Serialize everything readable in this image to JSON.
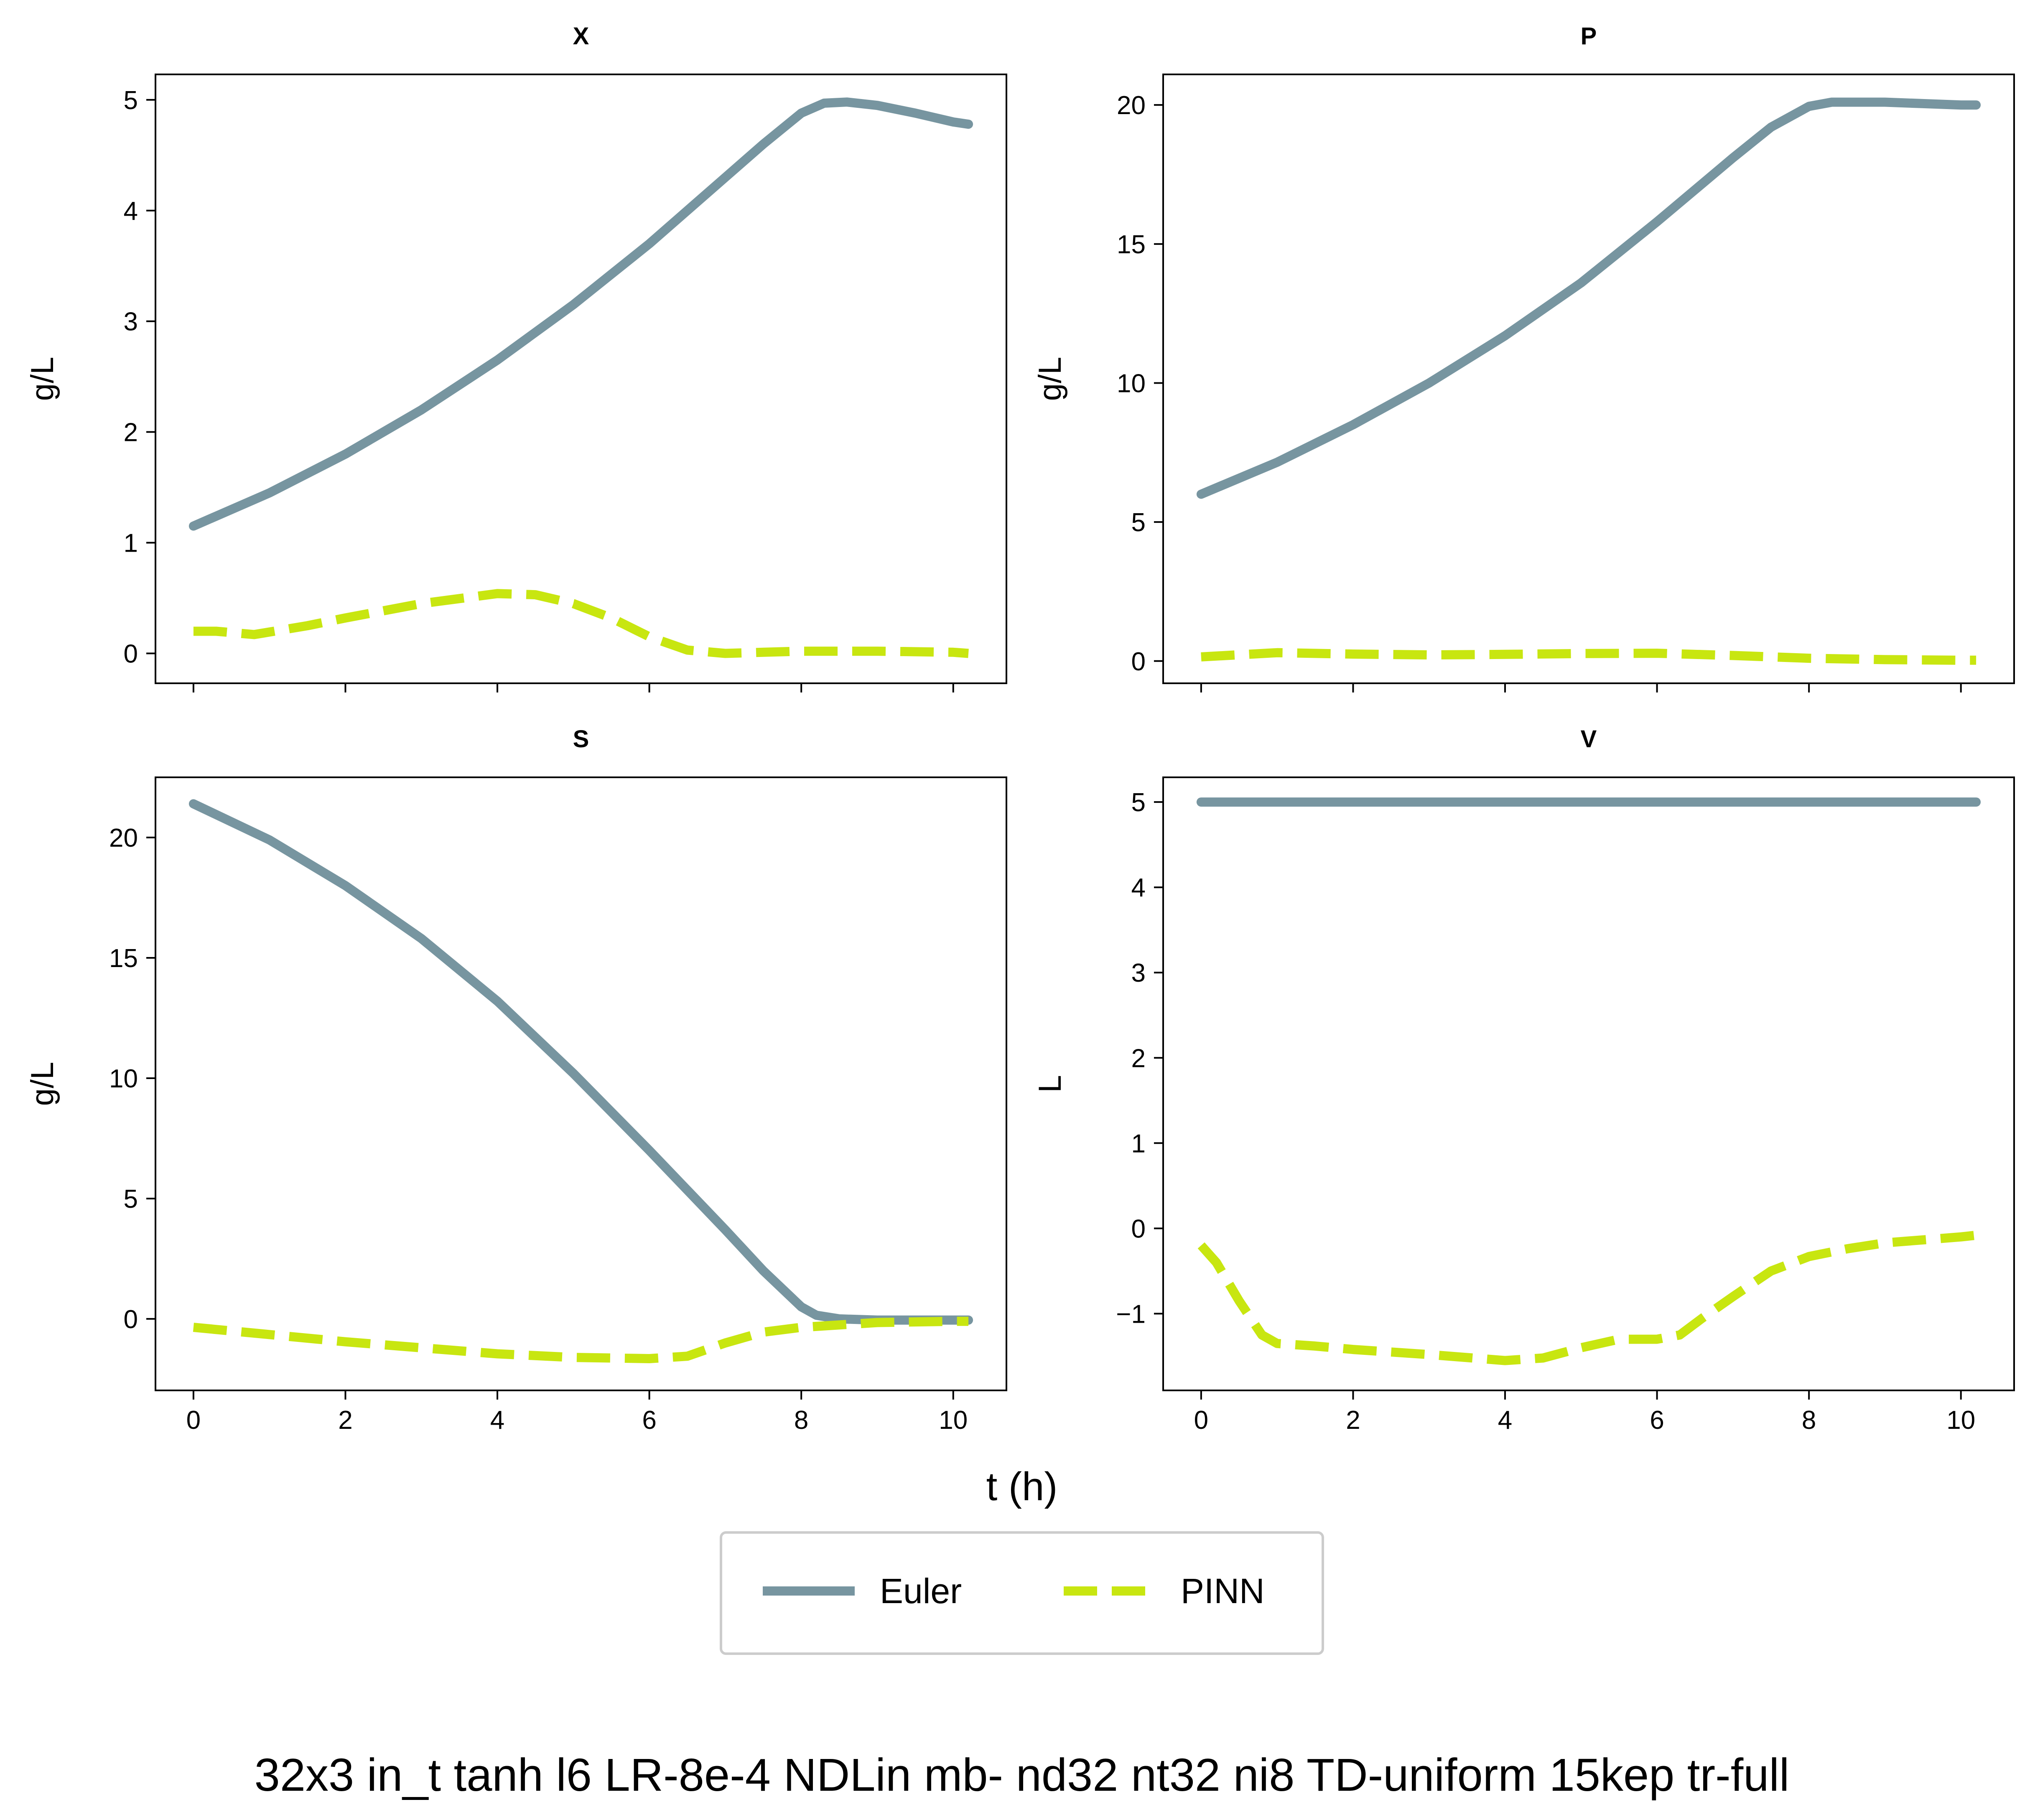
{
  "colors": {
    "euler": "#7795a0",
    "pinn": "#c8e610"
  },
  "legend": {
    "items": [
      {
        "label": "Euler",
        "style": "solid"
      },
      {
        "label": "PINN",
        "style": "dashed"
      }
    ]
  },
  "xlabel": "t (h)",
  "suptitle": "32x3 in_t tanh l6 LR-8e-4 NDLin mb- nd32 nt32 ni8 TD-uniform 15kep tr-full",
  "chart_data": [
    {
      "type": "line",
      "title": "X",
      "ylabel": "g/L",
      "xlim": [
        -0.5,
        10.7
      ],
      "ylim": [
        -0.27,
        5.23
      ],
      "xticks": [
        0,
        2,
        4,
        6,
        8,
        10
      ],
      "yticks": [
        0,
        1,
        2,
        3,
        4,
        5
      ],
      "xtick_labels": [],
      "ytick_labels": [
        "0",
        "1",
        "2",
        "3",
        "4",
        "5"
      ],
      "series": [
        {
          "name": "Euler",
          "x": [
            0,
            1,
            2,
            3,
            4,
            5,
            6,
            7,
            7.5,
            8,
            8.3,
            8.6,
            9,
            9.5,
            10,
            10.2
          ],
          "y": [
            1.15,
            1.45,
            1.8,
            2.2,
            2.65,
            3.15,
            3.7,
            4.3,
            4.6,
            4.88,
            4.97,
            4.98,
            4.95,
            4.88,
            4.8,
            4.78
          ]
        },
        {
          "name": "PINN",
          "x": [
            0,
            0.3,
            0.8,
            1.5,
            2,
            3,
            4,
            4.5,
            5,
            5.5,
            6,
            6.5,
            7,
            7.5,
            8,
            9,
            10,
            10.2
          ],
          "y": [
            0.2,
            0.2,
            0.17,
            0.25,
            0.32,
            0.45,
            0.54,
            0.53,
            0.45,
            0.32,
            0.15,
            0.03,
            0.0,
            0.01,
            0.02,
            0.02,
            0.01,
            0.0
          ]
        }
      ]
    },
    {
      "type": "line",
      "title": "P",
      "ylabel": "g/L",
      "xlim": [
        -0.5,
        10.7
      ],
      "ylim": [
        -0.8,
        21.1
      ],
      "xticks": [
        0,
        2,
        4,
        6,
        8,
        10
      ],
      "yticks": [
        0,
        5,
        10,
        15,
        20
      ],
      "xtick_labels": [],
      "ytick_labels": [
        "0",
        "5",
        "10",
        "15",
        "20"
      ],
      "series": [
        {
          "name": "Euler",
          "x": [
            0,
            1,
            2,
            3,
            4,
            5,
            6,
            7,
            7.5,
            8,
            8.3,
            8.7,
            9,
            9.5,
            10,
            10.2
          ],
          "y": [
            6.0,
            7.15,
            8.5,
            10.0,
            11.7,
            13.6,
            15.8,
            18.1,
            19.2,
            19.95,
            20.1,
            20.1,
            20.1,
            20.05,
            20.0,
            20.0
          ]
        },
        {
          "name": "PINN",
          "x": [
            0,
            1,
            2,
            3,
            4,
            5,
            6,
            7,
            8,
            9,
            10,
            10.2
          ],
          "y": [
            0.15,
            0.3,
            0.25,
            0.22,
            0.24,
            0.27,
            0.28,
            0.2,
            0.1,
            0.05,
            0.03,
            0.03
          ]
        }
      ]
    },
    {
      "type": "line",
      "title": "S",
      "ylabel": "g/L",
      "xlim": [
        -0.5,
        10.7
      ],
      "ylim": [
        -2.97,
        22.5
      ],
      "xticks": [
        0,
        2,
        4,
        6,
        8,
        10
      ],
      "yticks": [
        0,
        5,
        10,
        15,
        20
      ],
      "xtick_labels": [
        "0",
        "2",
        "4",
        "6",
        "8",
        "10"
      ],
      "ytick_labels": [
        "0",
        "5",
        "10",
        "15",
        "20"
      ],
      "series": [
        {
          "name": "Euler",
          "x": [
            0,
            1,
            2,
            3,
            4,
            5,
            6,
            7,
            7.5,
            8,
            8.2,
            8.5,
            9,
            9.5,
            10,
            10.2
          ],
          "y": [
            21.4,
            19.9,
            18.0,
            15.8,
            13.2,
            10.2,
            7.0,
            3.7,
            2.0,
            0.5,
            0.15,
            0.0,
            -0.05,
            -0.05,
            -0.05,
            -0.05
          ]
        },
        {
          "name": "PINN",
          "x": [
            0,
            1,
            2,
            3,
            4,
            5,
            6,
            6.5,
            7,
            7.5,
            8,
            9,
            10,
            10.2
          ],
          "y": [
            -0.35,
            -0.65,
            -0.95,
            -1.2,
            -1.45,
            -1.6,
            -1.65,
            -1.55,
            -1.0,
            -0.55,
            -0.35,
            -0.15,
            -0.1,
            -0.1
          ]
        }
      ]
    },
    {
      "type": "line",
      "title": "V",
      "ylabel": "L",
      "xlim": [
        -0.5,
        10.7
      ],
      "ylim": [
        -1.9,
        5.29
      ],
      "xticks": [
        0,
        2,
        4,
        6,
        8,
        10
      ],
      "yticks": [
        -1,
        0,
        1,
        2,
        3,
        4,
        5
      ],
      "xtick_labels": [
        "0",
        "2",
        "4",
        "6",
        "8",
        "10"
      ],
      "ytick_labels": [
        "−1",
        "0",
        "1",
        "2",
        "3",
        "4",
        "5"
      ],
      "series": [
        {
          "name": "Euler",
          "x": [
            0,
            10.2
          ],
          "y": [
            5.0,
            5.0
          ]
        },
        {
          "name": "PINN",
          "x": [
            0,
            0.2,
            0.5,
            0.8,
            1,
            1.5,
            2,
            3,
            4,
            4.5,
            5,
            5.5,
            6,
            6.3,
            6.6,
            7,
            7.5,
            8,
            8.5,
            9,
            10,
            10.2
          ],
          "y": [
            -0.2,
            -0.4,
            -0.85,
            -1.25,
            -1.35,
            -1.38,
            -1.42,
            -1.48,
            -1.55,
            -1.52,
            -1.4,
            -1.3,
            -1.3,
            -1.25,
            -1.05,
            -0.8,
            -0.5,
            -0.33,
            -0.24,
            -0.17,
            -0.1,
            -0.08
          ]
        }
      ]
    }
  ]
}
